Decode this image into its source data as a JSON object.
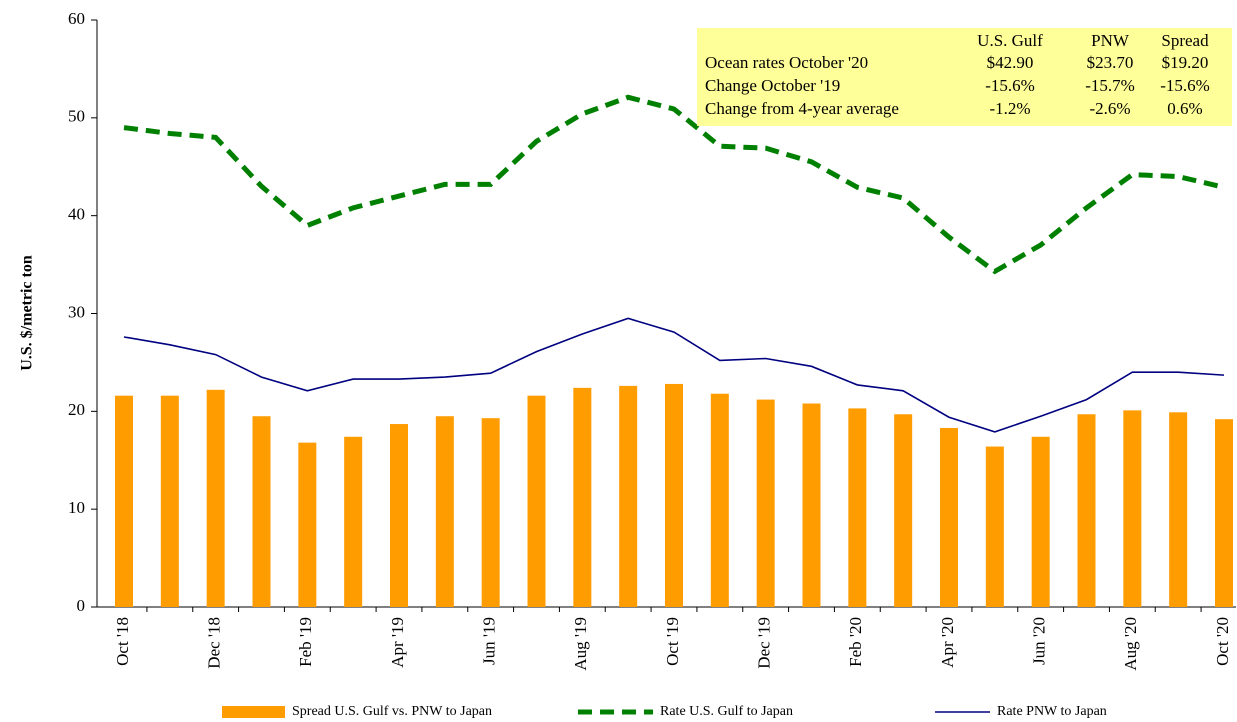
{
  "chart_data": {
    "type": "bar",
    "y_label": "U.S. $/metric ton",
    "categories": [
      "Oct '18",
      null,
      "Dec '18",
      null,
      "Feb '19",
      null,
      "Apr '19",
      null,
      "Jun '19",
      null,
      "Aug '19",
      null,
      "Oct '19",
      null,
      "Dec '19",
      null,
      "Feb '20",
      null,
      "Apr '20",
      null,
      "Jun '20",
      null,
      "Aug '20",
      null,
      "Oct '20"
    ],
    "series": [
      {
        "name": "Spread U.S. Gulf vs. PNW to Japan",
        "type": "bar",
        "color": "#ff9c00",
        "values": [
          21.6,
          21.6,
          22.2,
          19.5,
          16.8,
          17.4,
          18.7,
          19.5,
          19.3,
          21.6,
          22.4,
          22.6,
          22.8,
          21.8,
          21.2,
          20.8,
          20.3,
          19.7,
          18.3,
          16.4,
          17.4,
          19.7,
          20.1,
          19.9,
          19.2
        ]
      },
      {
        "name": "Rate U.S. Gulf to Japan",
        "type": "line",
        "line_style": "dashed",
        "color": "#008000",
        "values": [
          49.0,
          48.4,
          48.0,
          43.0,
          39.0,
          40.8,
          42.0,
          43.2,
          43.2,
          47.6,
          50.4,
          52.1,
          50.9,
          47.1,
          46.9,
          45.5,
          42.9,
          41.8,
          37.8,
          34.3,
          37.0,
          40.8,
          44.2,
          44.0,
          42.9
        ]
      },
      {
        "name": "Rate PNW to Japan",
        "type": "line",
        "line_style": "solid",
        "color": "#000080",
        "values": [
          27.6,
          26.8,
          25.8,
          23.5,
          22.1,
          23.3,
          23.3,
          23.5,
          23.9,
          26.1,
          27.9,
          29.5,
          28.1,
          25.2,
          25.4,
          24.6,
          22.7,
          22.1,
          19.4,
          17.9,
          19.5,
          21.2,
          24.0,
          24.0,
          23.7
        ]
      }
    ],
    "ylim": [
      0,
      60
    ],
    "yticks": [
      0,
      10,
      20,
      30,
      40,
      50,
      60
    ],
    "grid": false,
    "legend": "bottom",
    "table": {
      "color": "#ffff99",
      "header": [
        "U.S. Gulf",
        "PNW",
        "Spread"
      ],
      "rows": [
        [
          "Ocean rates October '20",
          "$42.90",
          "$23.70",
          "$19.20"
        ],
        [
          "Change October '19",
          "-15.6%",
          "-15.7%",
          "-15.6%"
        ],
        [
          "Change from 4-year average",
          "-1.2%",
          "-2.6%",
          "0.6%"
        ]
      ]
    }
  }
}
